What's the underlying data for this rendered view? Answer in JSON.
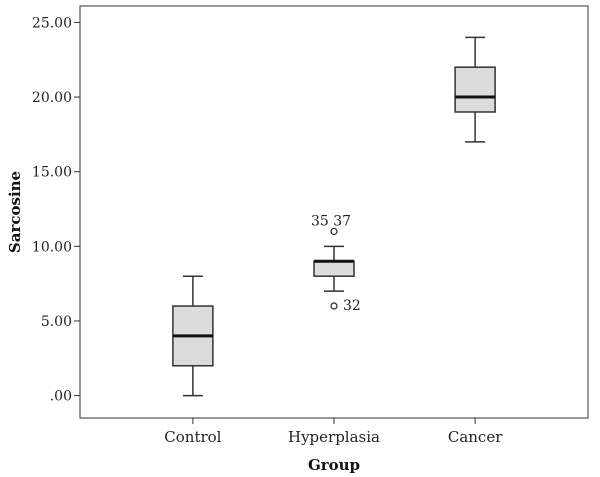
{
  "chart_data": {
    "type": "boxplot",
    "title": "",
    "xlabel": "Group",
    "ylabel": "Sarcosine",
    "ylim": [
      -1.5,
      26.1
    ],
    "y_ticks": [
      0,
      5,
      10,
      15,
      20,
      25
    ],
    "y_tick_labels": [
      ".00",
      "5.00",
      "10.00",
      "15.00",
      "20.00",
      "25.00"
    ],
    "grid": false,
    "categories": [
      "Control",
      "Hyperplasia",
      "Cancer"
    ],
    "boxes": [
      {
        "category": "Control",
        "min": 0,
        "q1": 2,
        "median": 4,
        "q3": 6,
        "max": 8,
        "outliers": []
      },
      {
        "category": "Hyperplasia",
        "min": 7,
        "q1": 8,
        "median": 9,
        "q3": 9,
        "max": 10,
        "outliers": [
          {
            "value": 11,
            "label": "35 37"
          },
          {
            "value": 6,
            "label": "32"
          }
        ]
      },
      {
        "category": "Cancer",
        "min": 17,
        "q1": 19,
        "median": 20,
        "q3": 22,
        "max": 24,
        "outliers": []
      }
    ],
    "colors": {
      "box_fill": "#dcdcdc",
      "stroke": "#333333",
      "background": "#ffffff"
    }
  }
}
